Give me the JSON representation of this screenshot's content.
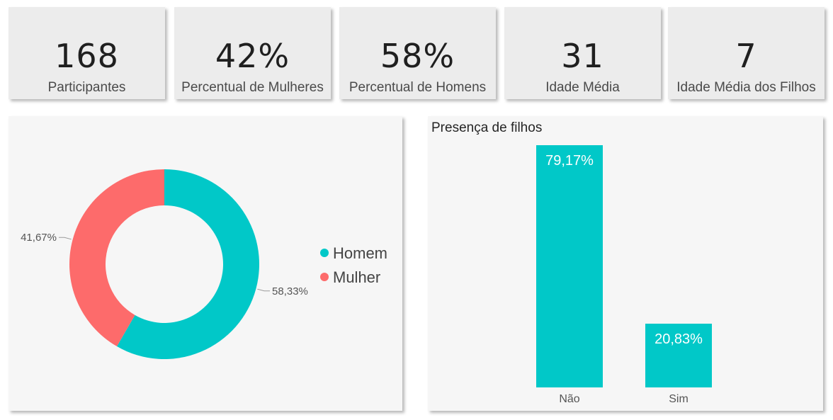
{
  "kpis": [
    {
      "value": "168",
      "label": "Participantes"
    },
    {
      "value": "42%",
      "label": "Percentual de Mulheres"
    },
    {
      "value": "58%",
      "label": "Percentual de Homens"
    },
    {
      "value": "31",
      "label": "Idade Média"
    },
    {
      "value": "7",
      "label": "Idade Média dos Filhos"
    }
  ],
  "colors": {
    "homem": "#01c8c8",
    "mulher": "#fd6b6b"
  },
  "chart_data": [
    {
      "type": "pie",
      "title": "",
      "legend_position": "right",
      "slices": [
        {
          "name": "Homem",
          "value": 58.33,
          "label": "58,33%",
          "color": "#01c8c8"
        },
        {
          "name": "Mulher",
          "value": 41.67,
          "label": "41,67%",
          "color": "#fd6b6b"
        }
      ]
    },
    {
      "type": "bar",
      "title": "Presença de filhos",
      "categories": [
        "Não",
        "Sim"
      ],
      "values": [
        79.17,
        20.83
      ],
      "labels": [
        "79,17%",
        "20,83%"
      ],
      "ylim": [
        0,
        79.17
      ],
      "color": "#01c8c8",
      "grid": false
    }
  ]
}
